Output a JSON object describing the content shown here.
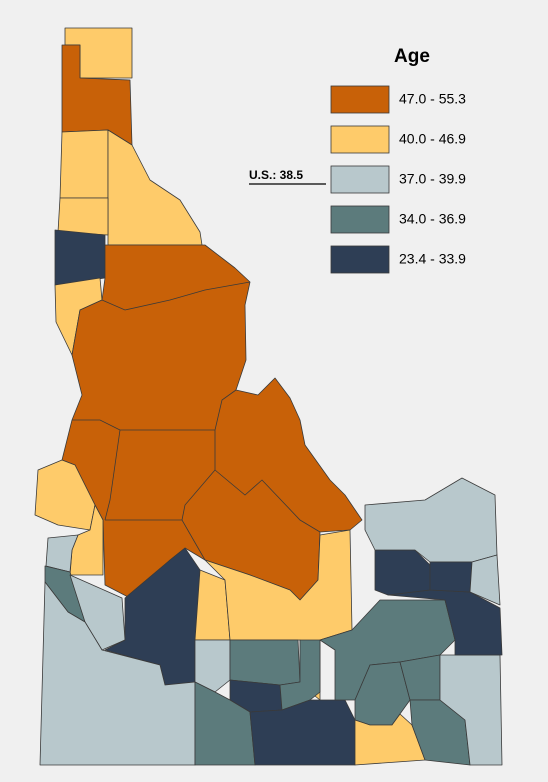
{
  "legend": {
    "title": "Age",
    "items": [
      {
        "label": "47.0 - 55.3",
        "color": "#c86108"
      },
      {
        "label": "40.0 - 46.9",
        "color": "#fecb6a"
      },
      {
        "label": "37.0 - 39.9",
        "color": "#b8c8cc"
      },
      {
        "label": "34.0 - 36.9",
        "color": "#5c7b7c"
      },
      {
        "label": "23.4 - 33.9",
        "color": "#2e3e55"
      }
    ]
  },
  "annotation": "U.S.: 38.5"
}
